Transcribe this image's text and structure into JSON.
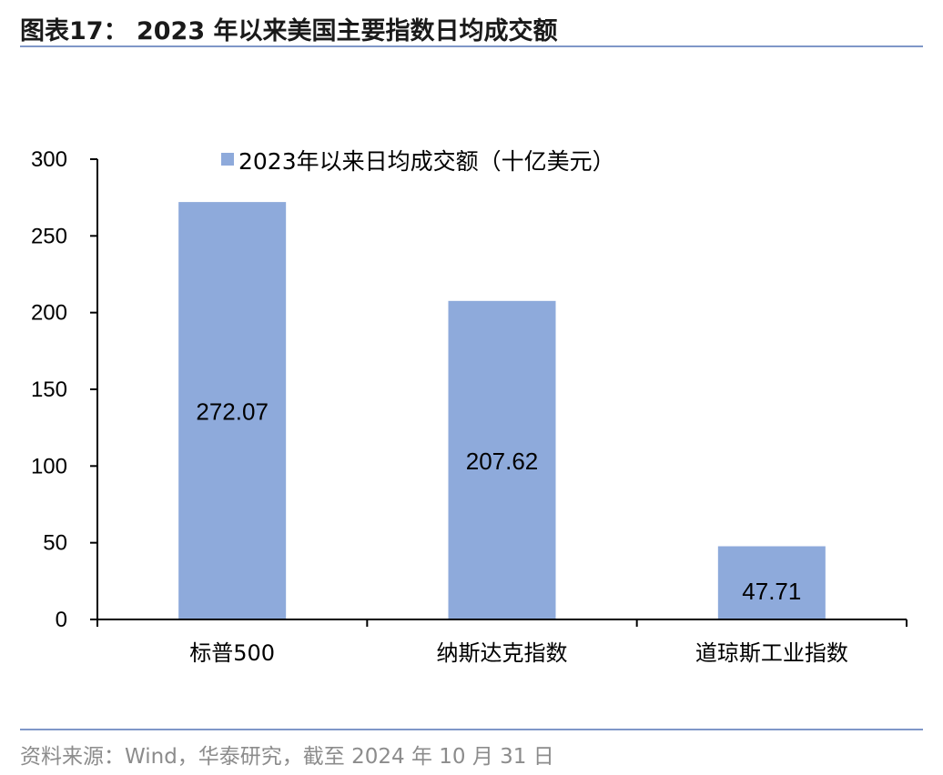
{
  "header": {
    "title": "图表17： 2023 年以来美国主要指数日均成交额"
  },
  "footer": {
    "source": "资料来源：Wind，华泰研究，截至 2024 年 10 月 31 日"
  },
  "colors": {
    "bar": "#8eaadb",
    "axis": "#000000",
    "rule": "#7f97c8"
  },
  "chart_data": {
    "type": "bar",
    "categories": [
      "标普500",
      "纳斯达克指数",
      "道琼斯工业指数"
    ],
    "series": [
      {
        "name": "2023年以来日均成交额（十亿美元）",
        "values": [
          272.07,
          207.62,
          47.71
        ]
      }
    ],
    "data_labels": [
      "272.07",
      "207.62",
      "47.71"
    ],
    "ylim": [
      0,
      300
    ],
    "yticks": [
      0,
      50,
      100,
      150,
      200,
      250,
      300
    ],
    "grid": false,
    "legend_position": "top-center"
  }
}
